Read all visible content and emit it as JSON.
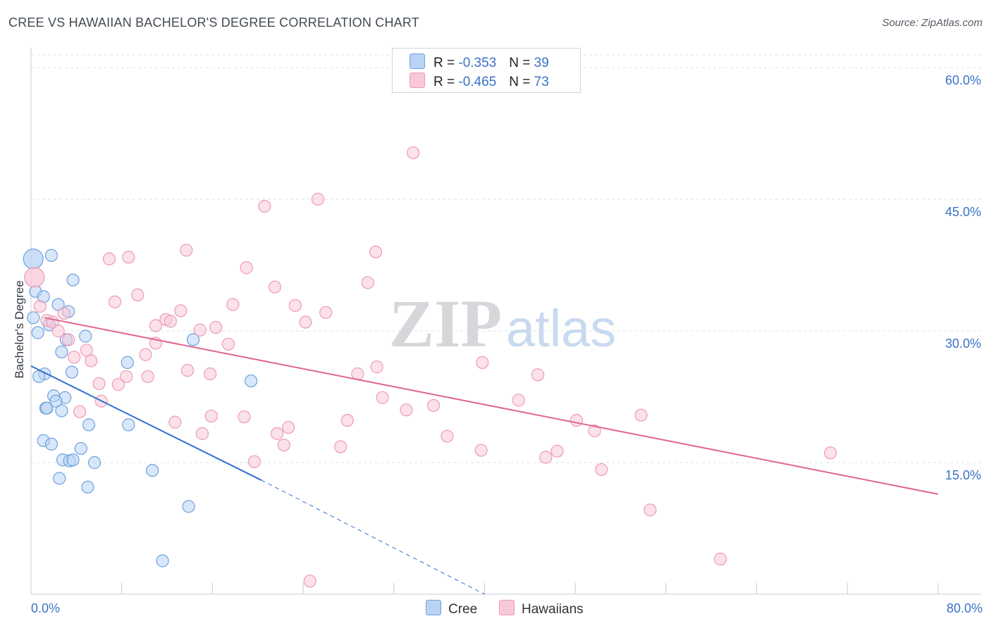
{
  "title": "CREE VS HAWAIIAN BACHELOR'S DEGREE CORRELATION CHART",
  "source": "Source: ZipAtlas.com",
  "watermark": {
    "zip": "ZIP",
    "atlas": "atlas"
  },
  "legend": {
    "rows": [
      {
        "r_label": "R = ",
        "r_value": "-0.353",
        "n_label": "N = ",
        "n_value": "39"
      },
      {
        "r_label": "R = ",
        "r_value": "-0.465",
        "n_label": "N = ",
        "n_value": "73"
      }
    ]
  },
  "colors": {
    "cree_fill": "#b8d3f5",
    "cree_stroke": "#6fa0dc",
    "cree_line": "#2e6fd0",
    "haw_fill": "#f8c8d8",
    "haw_stroke": "#ee9ab5",
    "haw_line": "#e0658f",
    "axis_label": "#3a72c8",
    "grid": "#dde0e5"
  },
  "chart_data": {
    "type": "scatter",
    "title": "CREE VS HAWAIIAN BACHELOR'S DEGREE CORRELATION CHART",
    "xlabel": "",
    "ylabel": "Bachelor's Degree",
    "xlim": [
      0,
      80
    ],
    "ylim": [
      0,
      60
    ],
    "x_tick_labels": [
      {
        "value": 0,
        "label": "0.0%"
      },
      {
        "value": 80,
        "label": "80.0%"
      }
    ],
    "y_tick_labels": [
      {
        "value": 15,
        "label": "15.0%"
      },
      {
        "value": 30,
        "label": "30.0%"
      },
      {
        "value": 45,
        "label": "45.0%"
      },
      {
        "value": 60,
        "label": "60.0%"
      }
    ],
    "legend_position": "top-center",
    "series": [
      {
        "name": "Cree",
        "r": -0.353,
        "n": 39,
        "trend": {
          "x0": 0,
          "y0": 26.0,
          "x1": 20.3,
          "y1": 13.0,
          "dash_to_x": 40,
          "dash_to_y": 0.0
        },
        "points": [
          [
            0.2,
            38.2
          ],
          [
            1.8,
            38.6
          ],
          [
            3.7,
            35.8
          ],
          [
            0.4,
            34.5
          ],
          [
            1.1,
            33.9
          ],
          [
            0.2,
            31.5
          ],
          [
            2.4,
            33.0
          ],
          [
            3.3,
            32.2
          ],
          [
            0.6,
            29.8
          ],
          [
            1.6,
            30.7
          ],
          [
            3.1,
            29.0
          ],
          [
            4.8,
            29.4
          ],
          [
            14.3,
            29.0
          ],
          [
            2.7,
            27.6
          ],
          [
            1.2,
            25.1
          ],
          [
            0.7,
            24.8
          ],
          [
            3.6,
            25.3
          ],
          [
            8.5,
            26.4
          ],
          [
            19.4,
            24.3
          ],
          [
            2.0,
            22.6
          ],
          [
            3.0,
            22.4
          ],
          [
            2.2,
            22.0
          ],
          [
            1.3,
            21.2
          ],
          [
            1.4,
            21.2
          ],
          [
            2.7,
            20.9
          ],
          [
            5.1,
            19.3
          ],
          [
            8.6,
            19.3
          ],
          [
            1.1,
            17.5
          ],
          [
            1.8,
            17.1
          ],
          [
            4.4,
            16.6
          ],
          [
            2.8,
            15.3
          ],
          [
            3.4,
            15.2
          ],
          [
            3.7,
            15.3
          ],
          [
            5.6,
            15.0
          ],
          [
            10.7,
            14.1
          ],
          [
            2.5,
            13.2
          ],
          [
            5.0,
            12.2
          ],
          [
            13.9,
            10.0
          ],
          [
            11.6,
            3.8
          ]
        ]
      },
      {
        "name": "Hawaiians",
        "r": -0.465,
        "n": 73,
        "trend": {
          "x0": 1.2,
          "y0": 31.5,
          "x1": 80,
          "y1": 11.4
        },
        "points": [
          [
            33.7,
            50.3
          ],
          [
            25.3,
            45.0
          ],
          [
            20.6,
            44.2
          ],
          [
            13.7,
            39.2
          ],
          [
            30.4,
            39.0
          ],
          [
            8.6,
            38.4
          ],
          [
            6.9,
            38.2
          ],
          [
            19.0,
            37.2
          ],
          [
            0.3,
            36.1
          ],
          [
            29.7,
            35.5
          ],
          [
            21.5,
            35.0
          ],
          [
            9.4,
            34.1
          ],
          [
            7.4,
            33.3
          ],
          [
            17.8,
            33.0
          ],
          [
            23.3,
            32.9
          ],
          [
            0.8,
            32.8
          ],
          [
            13.2,
            32.3
          ],
          [
            26.0,
            32.1
          ],
          [
            2.9,
            32.0
          ],
          [
            1.4,
            31.2
          ],
          [
            11.9,
            31.3
          ],
          [
            12.3,
            31.1
          ],
          [
            24.2,
            31.0
          ],
          [
            16.3,
            30.4
          ],
          [
            1.9,
            31.0
          ],
          [
            11.0,
            30.6
          ],
          [
            2.4,
            30.0
          ],
          [
            14.9,
            30.1
          ],
          [
            4.9,
            27.8
          ],
          [
            11.0,
            28.6
          ],
          [
            17.4,
            28.5
          ],
          [
            3.3,
            29.0
          ],
          [
            10.1,
            27.3
          ],
          [
            3.8,
            27.0
          ],
          [
            5.3,
            26.6
          ],
          [
            39.8,
            26.4
          ],
          [
            30.5,
            25.9
          ],
          [
            13.8,
            25.5
          ],
          [
            28.8,
            25.1
          ],
          [
            44.7,
            25.0
          ],
          [
            15.8,
            25.1
          ],
          [
            8.4,
            24.8
          ],
          [
            10.3,
            24.8
          ],
          [
            6.0,
            24.0
          ],
          [
            7.7,
            23.9
          ],
          [
            31.0,
            22.4
          ],
          [
            43.0,
            22.1
          ],
          [
            6.2,
            22.0
          ],
          [
            35.5,
            21.5
          ],
          [
            33.1,
            21.0
          ],
          [
            4.3,
            20.8
          ],
          [
            53.8,
            20.4
          ],
          [
            15.9,
            20.3
          ],
          [
            18.8,
            20.2
          ],
          [
            27.9,
            19.8
          ],
          [
            48.1,
            19.8
          ],
          [
            12.7,
            19.6
          ],
          [
            22.7,
            19.0
          ],
          [
            49.7,
            18.6
          ],
          [
            21.7,
            18.3
          ],
          [
            15.1,
            18.3
          ],
          [
            36.7,
            18.0
          ],
          [
            22.3,
            17.0
          ],
          [
            27.3,
            16.8
          ],
          [
            39.7,
            16.4
          ],
          [
            46.4,
            16.3
          ],
          [
            70.5,
            16.1
          ],
          [
            45.4,
            15.6
          ],
          [
            19.7,
            15.1
          ],
          [
            50.3,
            14.2
          ],
          [
            54.6,
            9.6
          ],
          [
            60.8,
            4.0
          ],
          [
            24.6,
            1.5
          ]
        ]
      }
    ]
  },
  "bottom_legend": [
    {
      "label": "Cree"
    },
    {
      "label": "Hawaiians"
    }
  ]
}
